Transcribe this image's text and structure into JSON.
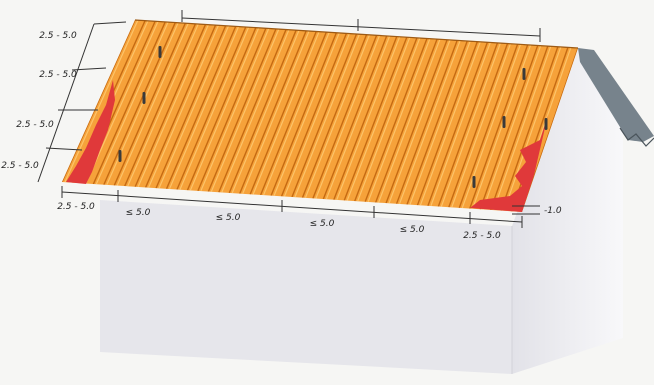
{
  "labels": {
    "left_side": [
      "2.5 - 5.0",
      "2.5 - 5.0",
      "2.5 - 5.0",
      "2.5 - 5.0"
    ],
    "bottom_left_corner": "2.5 - 5.0",
    "bottom_spans": [
      "≤ 5.0",
      "≤ 5.0",
      "≤ 5.0",
      "≤ 5.0"
    ],
    "bottom_right_corner": "2.5 - 5.0",
    "right_offset": "-1.0"
  },
  "colors": {
    "roof_orange": "#f6a23a",
    "roof_ridge_line": "#c56a12",
    "fastening_zone_red": "#e0393a",
    "gable_roof_grey": "#77838c",
    "wall_front": "#e7e7ec",
    "wall_side": "#f3f3f6",
    "dimension_line": "#333333"
  },
  "legend_glyphs": {
    "fastener": "fastener-icon"
  }
}
